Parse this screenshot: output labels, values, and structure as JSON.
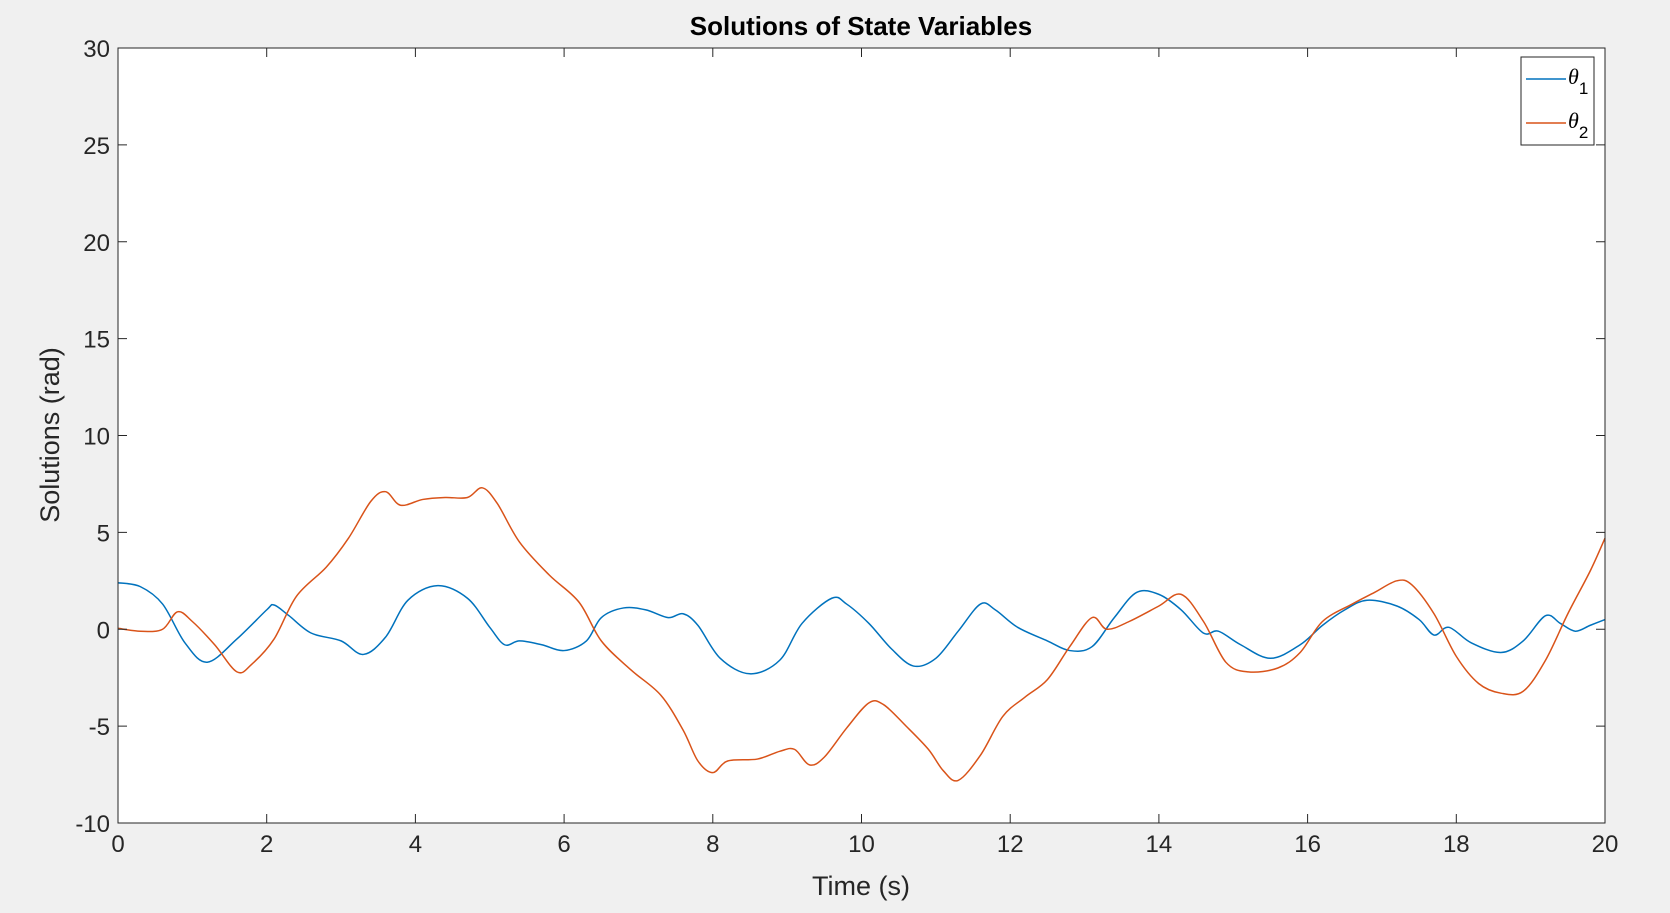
{
  "chart_data": {
    "type": "line",
    "title": "Solutions of State Variables",
    "xlabel": "Time (s)",
    "ylabel": "Solutions (rad)",
    "xlim": [
      0,
      20
    ],
    "ylim": [
      -10,
      30
    ],
    "xticks": [
      0,
      2,
      4,
      6,
      8,
      10,
      12,
      14,
      16,
      18,
      20
    ],
    "yticks": [
      -10,
      -5,
      0,
      5,
      10,
      15,
      20,
      25,
      30
    ],
    "grid": false,
    "legend_position": "top-right",
    "series": [
      {
        "name": "θ",
        "subscript": "1",
        "color": "#0072bd",
        "points": [
          [
            0,
            2.4
          ],
          [
            0.3,
            2.2
          ],
          [
            0.6,
            1.3
          ],
          [
            0.9,
            -0.7
          ],
          [
            1.2,
            -1.7
          ],
          [
            1.6,
            -0.5
          ],
          [
            2.0,
            1.0
          ],
          [
            2.1,
            1.25
          ],
          [
            2.3,
            0.7
          ],
          [
            2.6,
            -0.2
          ],
          [
            3.0,
            -0.6
          ],
          [
            3.3,
            -1.3
          ],
          [
            3.6,
            -0.4
          ],
          [
            3.9,
            1.5
          ],
          [
            4.3,
            2.25
          ],
          [
            4.7,
            1.6
          ],
          [
            5.0,
            0.1
          ],
          [
            5.2,
            -0.8
          ],
          [
            5.4,
            -0.6
          ],
          [
            5.7,
            -0.8
          ],
          [
            6.0,
            -1.1
          ],
          [
            6.3,
            -0.6
          ],
          [
            6.5,
            0.6
          ],
          [
            6.8,
            1.1
          ],
          [
            7.1,
            1.0
          ],
          [
            7.4,
            0.6
          ],
          [
            7.6,
            0.8
          ],
          [
            7.8,
            0.2
          ],
          [
            8.1,
            -1.5
          ],
          [
            8.5,
            -2.3
          ],
          [
            8.9,
            -1.6
          ],
          [
            9.2,
            0.3
          ],
          [
            9.6,
            1.6
          ],
          [
            9.8,
            1.3
          ],
          [
            10.1,
            0.3
          ],
          [
            10.4,
            -1.0
          ],
          [
            10.7,
            -1.9
          ],
          [
            11.0,
            -1.5
          ],
          [
            11.3,
            -0.1
          ],
          [
            11.6,
            1.3
          ],
          [
            11.8,
            1.0
          ],
          [
            12.1,
            0.1
          ],
          [
            12.5,
            -0.6
          ],
          [
            12.8,
            -1.1
          ],
          [
            13.1,
            -0.9
          ],
          [
            13.4,
            0.6
          ],
          [
            13.7,
            1.9
          ],
          [
            14.0,
            1.8
          ],
          [
            14.3,
            1.0
          ],
          [
            14.6,
            -0.2
          ],
          [
            14.8,
            -0.1
          ],
          [
            15.1,
            -0.8
          ],
          [
            15.5,
            -1.5
          ],
          [
            15.9,
            -0.8
          ],
          [
            16.2,
            0.2
          ],
          [
            16.5,
            1.0
          ],
          [
            16.8,
            1.5
          ],
          [
            17.2,
            1.2
          ],
          [
            17.5,
            0.5
          ],
          [
            17.7,
            -0.3
          ],
          [
            17.9,
            0.1
          ],
          [
            18.2,
            -0.7
          ],
          [
            18.6,
            -1.2
          ],
          [
            18.9,
            -0.6
          ],
          [
            19.2,
            0.7
          ],
          [
            19.4,
            0.3
          ],
          [
            19.6,
            -0.1
          ],
          [
            19.8,
            0.2
          ],
          [
            20.0,
            0.5
          ]
        ]
      },
      {
        "name": "θ",
        "subscript": "2",
        "color": "#d95319",
        "points": [
          [
            0,
            0.05
          ],
          [
            0.3,
            -0.1
          ],
          [
            0.6,
            0.0
          ],
          [
            0.8,
            0.9
          ],
          [
            1.0,
            0.4
          ],
          [
            1.3,
            -0.8
          ],
          [
            1.6,
            -2.2
          ],
          [
            1.8,
            -1.8
          ],
          [
            2.1,
            -0.5
          ],
          [
            2.4,
            1.7
          ],
          [
            2.8,
            3.2
          ],
          [
            3.1,
            4.7
          ],
          [
            3.4,
            6.6
          ],
          [
            3.6,
            7.1
          ],
          [
            3.8,
            6.4
          ],
          [
            4.1,
            6.7
          ],
          [
            4.4,
            6.8
          ],
          [
            4.7,
            6.8
          ],
          [
            4.9,
            7.3
          ],
          [
            5.1,
            6.5
          ],
          [
            5.4,
            4.5
          ],
          [
            5.8,
            2.8
          ],
          [
            6.2,
            1.4
          ],
          [
            6.5,
            -0.6
          ],
          [
            6.9,
            -2.1
          ],
          [
            7.3,
            -3.4
          ],
          [
            7.6,
            -5.2
          ],
          [
            7.8,
            -6.8
          ],
          [
            8.0,
            -7.4
          ],
          [
            8.2,
            -6.8
          ],
          [
            8.6,
            -6.7
          ],
          [
            8.9,
            -6.3
          ],
          [
            9.1,
            -6.2
          ],
          [
            9.3,
            -7.0
          ],
          [
            9.5,
            -6.6
          ],
          [
            9.8,
            -5.1
          ],
          [
            10.1,
            -3.8
          ],
          [
            10.3,
            -3.9
          ],
          [
            10.6,
            -5.0
          ],
          [
            10.9,
            -6.2
          ],
          [
            11.1,
            -7.3
          ],
          [
            11.3,
            -7.8
          ],
          [
            11.6,
            -6.5
          ],
          [
            11.9,
            -4.5
          ],
          [
            12.2,
            -3.5
          ],
          [
            12.5,
            -2.6
          ],
          [
            12.8,
            -0.9
          ],
          [
            13.1,
            0.6
          ],
          [
            13.3,
            0.0
          ],
          [
            13.6,
            0.4
          ],
          [
            14.0,
            1.2
          ],
          [
            14.3,
            1.8
          ],
          [
            14.6,
            0.4
          ],
          [
            14.9,
            -1.7
          ],
          [
            15.2,
            -2.2
          ],
          [
            15.6,
            -2.0
          ],
          [
            15.9,
            -1.2
          ],
          [
            16.2,
            0.4
          ],
          [
            16.6,
            1.3
          ],
          [
            16.9,
            1.9
          ],
          [
            17.2,
            2.5
          ],
          [
            17.4,
            2.3
          ],
          [
            17.7,
            0.8
          ],
          [
            18.0,
            -1.4
          ],
          [
            18.3,
            -2.8
          ],
          [
            18.6,
            -3.3
          ],
          [
            18.9,
            -3.2
          ],
          [
            19.2,
            -1.6
          ],
          [
            19.5,
            0.8
          ],
          [
            19.8,
            3.0
          ],
          [
            20.0,
            4.7
          ]
        ]
      }
    ]
  }
}
